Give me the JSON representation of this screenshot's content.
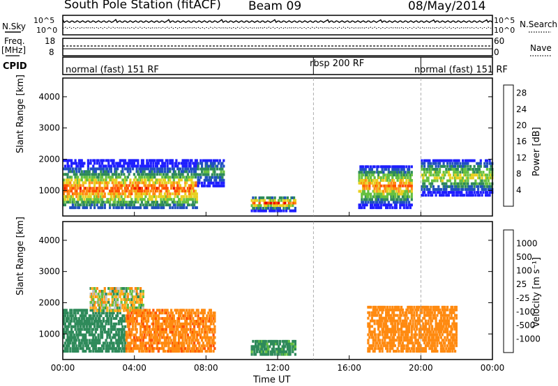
{
  "header": {
    "station": "South Pole Station (fitACF)",
    "beam": "Beam 09",
    "date": "08/May/2014"
  },
  "noise_panel": {
    "left_label": "N.Sky",
    "right_label": "N.Search",
    "left_ticks": [
      "10^5",
      "10^0"
    ],
    "right_ticks": [
      "10^5",
      "10^0"
    ]
  },
  "freq_panel": {
    "left_label": "Freq.",
    "left_unit": "[MHz]",
    "right_label": "Nave",
    "left_ticks": [
      "18",
      "8"
    ],
    "right_ticks": [
      "60",
      "0"
    ]
  },
  "cpid_panel": {
    "label": "CPID",
    "segments": [
      {
        "label": "normal (fast) 151 RF",
        "start": "00:00",
        "end": "14:00"
      },
      {
        "label": "rbsp 200 RF",
        "start": "14:00",
        "end": "20:00"
      },
      {
        "label": "normal (fast) 151 RF",
        "start": "20:00",
        "end": "24:00"
      }
    ]
  },
  "chart_data": [
    {
      "type": "heatmap",
      "title": "Power",
      "ylabel": "Slant Range [km]",
      "xlabel": "Time UT",
      "ylim": [
        180,
        4600
      ],
      "yticks": [
        "1000",
        "2000",
        "3000",
        "4000"
      ],
      "xticks": [
        "00:00",
        "04:00",
        "08:00",
        "12:00",
        "16:00",
        "20:00",
        "00:00"
      ],
      "xlim_hours": [
        0,
        24
      ],
      "colorbar": {
        "label": "Power [dB]",
        "ticks": [
          "4",
          "8",
          "12",
          "16",
          "20",
          "24",
          "28"
        ],
        "range": [
          0,
          30
        ],
        "colors": [
          "#1f1fff",
          "#2050c0",
          "#2e8a5a",
          "#66c040",
          "#e8d020",
          "#ff8a10",
          "#ff5000",
          "#e80000"
        ]
      },
      "regions": [
        {
          "t0": 0.0,
          "t1": 7.5,
          "r0": 400,
          "r1": 2000,
          "peak_km": 1000,
          "max_db": 28
        },
        {
          "t0": 7.5,
          "t1": 9.0,
          "r0": 1100,
          "r1": 2000,
          "max_db": 14
        },
        {
          "t0": 10.5,
          "t1": 13.0,
          "r0": 300,
          "r1": 800,
          "max_db": 28
        },
        {
          "t0": 16.5,
          "t1": 19.5,
          "r0": 400,
          "r1": 1800,
          "max_db": 26
        },
        {
          "t0": 20.0,
          "t1": 24.0,
          "r0": 800,
          "r1": 2000,
          "max_db": 20
        }
      ]
    },
    {
      "type": "heatmap",
      "title": "Velocity",
      "ylabel": "Slant Range [km]",
      "xlabel": "Time UT",
      "ylim": [
        180,
        4600
      ],
      "yticks": [
        "1000",
        "2000",
        "3000",
        "4000"
      ],
      "xticks": [
        "00:00",
        "04:00",
        "08:00",
        "12:00",
        "16:00",
        "20:00",
        "00:00"
      ],
      "xlim_hours": [
        0,
        24
      ],
      "colorbar": {
        "label": "Velocity [m s⁻¹]",
        "ticks": [
          "1000",
          "500",
          "100",
          "25",
          "-25",
          "-100",
          "-500",
          "-1000"
        ],
        "colors": [
          "#1f50c0",
          "#2f70a0",
          "#2e8a5a",
          "#66c040",
          "#c0c0c0",
          "#ffb020",
          "#ff8a10",
          "#ff5000",
          "#e80000"
        ]
      },
      "regions": [
        {
          "t0": 0.0,
          "t1": 3.5,
          "r0": 400,
          "r1": 1800,
          "v": 250
        },
        {
          "t0": 1.5,
          "t1": 4.5,
          "r0": 1700,
          "r1": 2500,
          "v": 0
        },
        {
          "t0": 3.5,
          "t1": 8.5,
          "r0": 400,
          "r1": 1800,
          "v": -400
        },
        {
          "t0": 10.5,
          "t1": 13.0,
          "r0": 300,
          "r1": 800,
          "v": 200
        },
        {
          "t0": 17.0,
          "t1": 22.0,
          "r0": 400,
          "r1": 1900,
          "v": -300
        }
      ]
    }
  ]
}
